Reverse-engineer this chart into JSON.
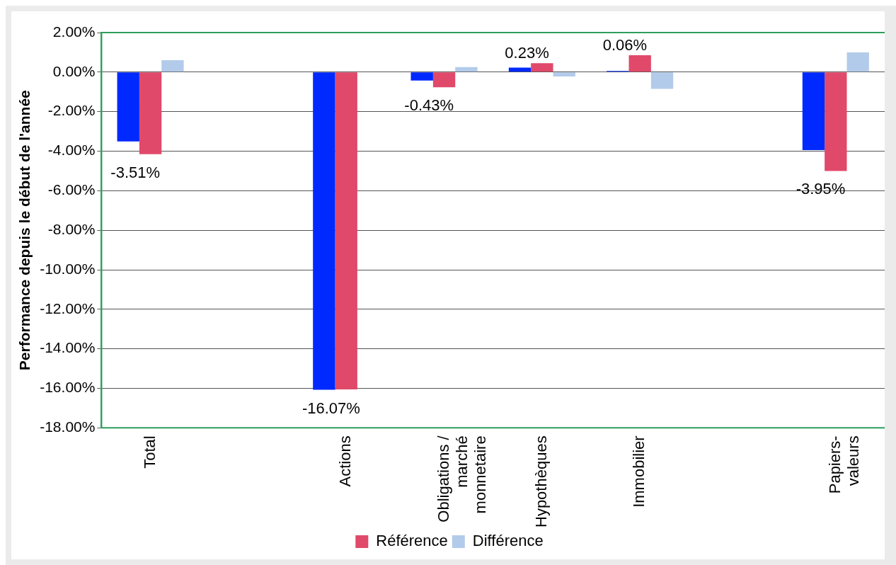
{
  "chart_data": {
    "type": "bar",
    "ylabel": "Performance depuis le début de l'année",
    "categories": [
      "Total",
      null,
      "Actions",
      "Obligations / marché monnetaire",
      "Hypothèques",
      "Immobilier",
      null,
      "Papiers-valeurs"
    ],
    "series": [
      {
        "color": "#0029ff",
        "values": [
          -3.51,
          null,
          -16.07,
          -0.43,
          0.23,
          0.06,
          null,
          -3.95
        ],
        "value_labels": [
          "-3.51%",
          null,
          "-16.07%",
          "-0.43%",
          "0.23%",
          "0.06%",
          null,
          "-3.95%"
        ]
      },
      {
        "name": "Référence",
        "color": "#e0496a",
        "values": [
          -4.15,
          null,
          -16.05,
          -0.77,
          0.45,
          0.85,
          null,
          -5.0
        ]
      },
      {
        "name": "Différence",
        "color": "#b3cbea",
        "values": [
          0.6,
          null,
          0,
          0.25,
          -0.22,
          -0.85,
          null,
          1.0
        ]
      }
    ],
    "ylim": [
      -18,
      2
    ],
    "yticks": [
      {
        "value": 2,
        "label": "2.00%"
      },
      {
        "value": 0,
        "label": "0.00%"
      },
      {
        "value": -2,
        "label": "-2.00%"
      },
      {
        "value": -4,
        "label": "-4.00%"
      },
      {
        "value": -6,
        "label": "-6.00%"
      },
      {
        "value": -8,
        "label": "-8.00%"
      },
      {
        "value": -10,
        "label": "-10.00%"
      },
      {
        "value": -12,
        "label": "-12.00%"
      },
      {
        "value": -14,
        "label": "-14.00%"
      },
      {
        "value": -16,
        "label": "-16.00%"
      },
      {
        "value": -18,
        "label": "-18.00%"
      }
    ],
    "grid": "y",
    "legend": "bottom"
  }
}
